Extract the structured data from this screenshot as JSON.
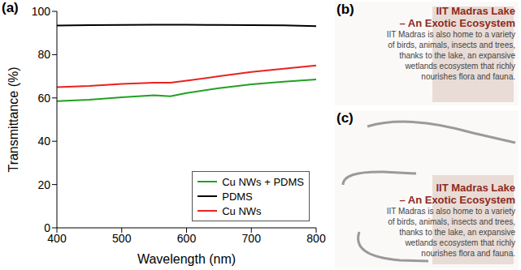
{
  "chart_data": {
    "type": "line",
    "label": "(a)",
    "x_label": "Wavelength (nm)",
    "y_label": "Transmittance (%)",
    "x": [
      400,
      450,
      500,
      550,
      575,
      600,
      650,
      700,
      750,
      800
    ],
    "xlim": [
      400,
      800
    ],
    "xticks": [
      400,
      500,
      600,
      700,
      800
    ],
    "ylim": [
      0,
      100
    ],
    "yticks": [
      0,
      20,
      40,
      60,
      80,
      100
    ],
    "grid": false,
    "legend": "lower right",
    "series": [
      {
        "name": "Cu NWs + PDMS",
        "color": "#22a022",
        "values": [
          58.5,
          59.2,
          60.3,
          61.2,
          60.8,
          62.3,
          64.5,
          66.3,
          67.5,
          68.5
        ]
      },
      {
        "name": "PDMS",
        "color": "#000000",
        "values": [
          93.4,
          93.6,
          93.7,
          93.8,
          93.8,
          93.8,
          93.7,
          93.6,
          93.5,
          93.2
        ]
      },
      {
        "name": "Cu NWs",
        "color": "#e8231e",
        "values": [
          65,
          65.5,
          66.5,
          67,
          67,
          68,
          70,
          72,
          73.5,
          75
        ]
      }
    ]
  },
  "photos": [
    {
      "label": "(b)",
      "title_lines": [
        "IIT Madras Lake",
        "– An Exotic Ecosystem"
      ],
      "text_lines": [
        "IIT Madras is also home to a variety",
        "of birds, animals, insects and trees,",
        "thanks to the lake, an expansive",
        "wetlands ecosystem that richly",
        "nourishes flora and fauna."
      ]
    },
    {
      "label": "(c)",
      "title_lines": [
        "IIT Madras Lake",
        "– An Exotic Ecosystem"
      ],
      "text_lines": [
        "IIT Madras is also home to a variety",
        "of birds, animals, insects and trees,",
        "thanks to the lake, an expansive",
        "wetlands ecosystem that richly",
        "nourishes flora and fauna."
      ]
    }
  ]
}
